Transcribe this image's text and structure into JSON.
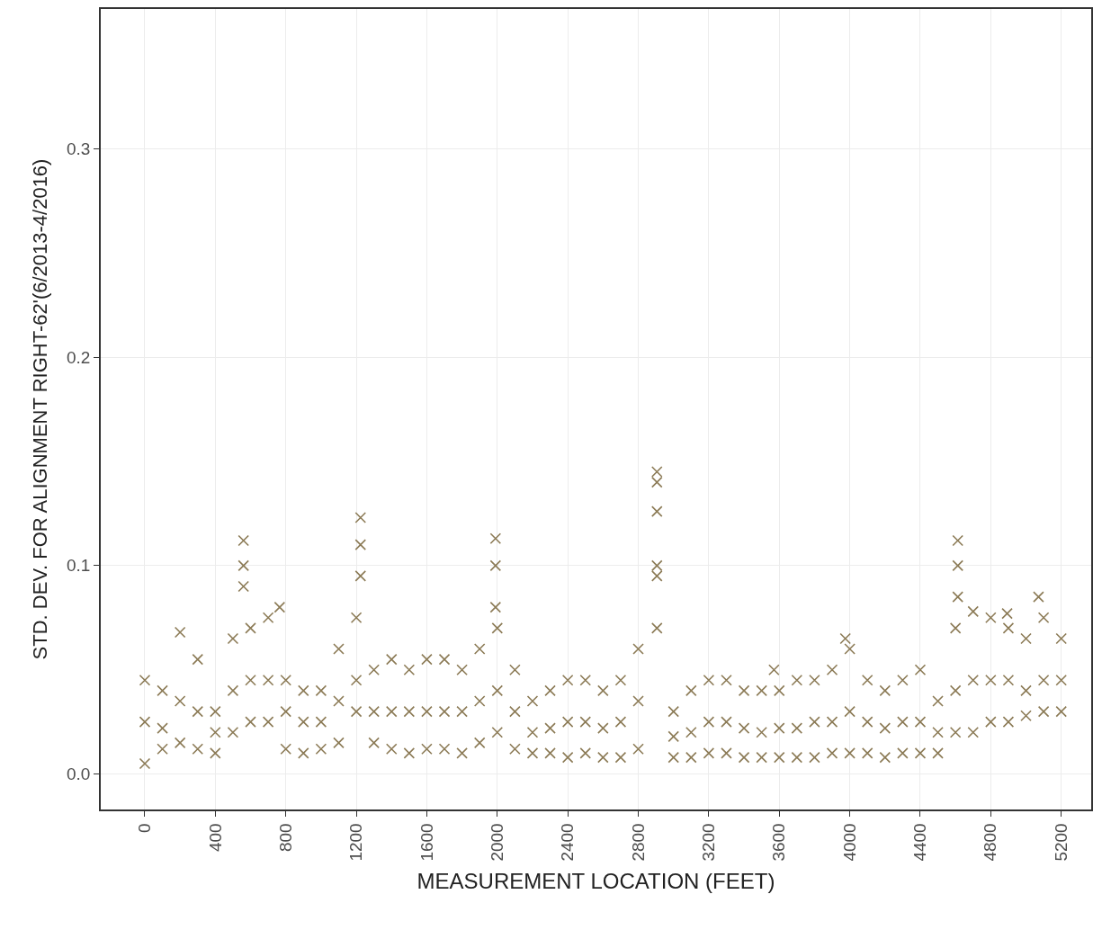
{
  "chart_data": {
    "type": "scatter",
    "xlabel": "MEASUREMENT LOCATION (FEET)",
    "ylabel": "STD. DEV. FOR ALIGNMENT RIGHT-62'(6/2013-4/2016)",
    "marker": "cross",
    "grid": true,
    "xlim": [
      -250,
      5370
    ],
    "ylim": [
      -0.017,
      0.367
    ],
    "xticks": [
      0,
      400,
      800,
      1200,
      1600,
      2000,
      2400,
      2800,
      3200,
      3600,
      4000,
      4400,
      4800,
      5200
    ],
    "yticks": [
      {
        "value": 0,
        "label": "0.0"
      },
      0.1,
      0.2,
      0.3
    ],
    "series": [
      {
        "color": "#8b7a55",
        "x": [
          0,
          0,
          0,
          100,
          100,
          100,
          200,
          200,
          200,
          300,
          300,
          300,
          400,
          400,
          400,
          500,
          500,
          500,
          560,
          560,
          560,
          600,
          600,
          600,
          700,
          700,
          700,
          765,
          800,
          800,
          800,
          900,
          900,
          900,
          1000,
          1000,
          1000,
          1100,
          1100,
          1100,
          1200,
          1200,
          1200,
          1224,
          1224,
          1224,
          1300,
          1300,
          1300,
          1400,
          1400,
          1400,
          1500,
          1500,
          1500,
          1600,
          1600,
          1600,
          1700,
          1700,
          1700,
          1800,
          1800,
          1800,
          1900,
          1900,
          1900,
          1990,
          1990,
          1990,
          2000,
          2000,
          2000,
          2100,
          2100,
          2100,
          2200,
          2200,
          2200,
          2300,
          2300,
          2300,
          2400,
          2400,
          2400,
          2500,
          2500,
          2500,
          2600,
          2600,
          2600,
          2700,
          2700,
          2700,
          2800,
          2800,
          2800,
          2906,
          2906,
          2906,
          2906,
          2906,
          2906,
          3000,
          3000,
          3000,
          3100,
          3100,
          3100,
          3200,
          3200,
          3200,
          3300,
          3300,
          3300,
          3400,
          3400,
          3400,
          3500,
          3500,
          3500,
          3570,
          3600,
          3600,
          3600,
          3700,
          3700,
          3700,
          3800,
          3800,
          3800,
          3900,
          3900,
          3900,
          3975,
          4000,
          4000,
          4000,
          4100,
          4100,
          4100,
          4200,
          4200,
          4200,
          4300,
          4300,
          4300,
          4400,
          4400,
          4400,
          4500,
          4500,
          4500,
          4600,
          4600,
          4600,
          4613,
          4613,
          4613,
          4700,
          4700,
          4700,
          4800,
          4800,
          4800,
          4893,
          4900,
          4900,
          4900,
          5000,
          5000,
          5000,
          5071,
          5100,
          5100,
          5100,
          5200,
          5200,
          5200
        ],
        "values": [
          0.045,
          0.025,
          0.005,
          0.04,
          0.022,
          0.012,
          0.068,
          0.035,
          0.015,
          0.055,
          0.03,
          0.012,
          0.03,
          0.02,
          0.01,
          0.065,
          0.04,
          0.02,
          0.112,
          0.1,
          0.09,
          0.07,
          0.045,
          0.025,
          0.075,
          0.045,
          0.025,
          0.08,
          0.045,
          0.03,
          0.012,
          0.04,
          0.025,
          0.01,
          0.04,
          0.025,
          0.012,
          0.06,
          0.035,
          0.015,
          0.075,
          0.045,
          0.03,
          0.123,
          0.11,
          0.095,
          0.05,
          0.03,
          0.015,
          0.055,
          0.03,
          0.012,
          0.05,
          0.03,
          0.01,
          0.055,
          0.03,
          0.012,
          0.055,
          0.03,
          0.012,
          0.05,
          0.03,
          0.01,
          0.06,
          0.035,
          0.015,
          0.113,
          0.1,
          0.08,
          0.07,
          0.04,
          0.02,
          0.05,
          0.03,
          0.012,
          0.035,
          0.02,
          0.01,
          0.04,
          0.022,
          0.01,
          0.045,
          0.025,
          0.008,
          0.045,
          0.025,
          0.01,
          0.04,
          0.022,
          0.008,
          0.045,
          0.025,
          0.008,
          0.06,
          0.035,
          0.012,
          0.145,
          0.14,
          0.126,
          0.1,
          0.095,
          0.07,
          0.03,
          0.018,
          0.008,
          0.04,
          0.02,
          0.008,
          0.045,
          0.025,
          0.01,
          0.045,
          0.025,
          0.01,
          0.04,
          0.022,
          0.008,
          0.04,
          0.02,
          0.008,
          0.05,
          0.04,
          0.022,
          0.008,
          0.045,
          0.022,
          0.008,
          0.045,
          0.025,
          0.008,
          0.05,
          0.025,
          0.01,
          0.065,
          0.06,
          0.03,
          0.01,
          0.045,
          0.025,
          0.01,
          0.04,
          0.022,
          0.008,
          0.045,
          0.025,
          0.01,
          0.05,
          0.025,
          0.01,
          0.035,
          0.02,
          0.01,
          0.07,
          0.04,
          0.02,
          0.112,
          0.1,
          0.085,
          0.078,
          0.045,
          0.02,
          0.075,
          0.045,
          0.025,
          0.077,
          0.07,
          0.045,
          0.025,
          0.065,
          0.04,
          0.028,
          0.085,
          0.075,
          0.045,
          0.03,
          0.065,
          0.045,
          0.03
        ]
      }
    ]
  }
}
